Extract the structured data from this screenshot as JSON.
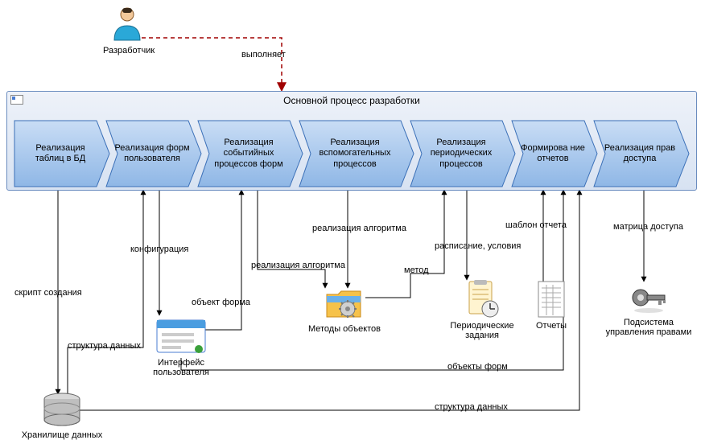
{
  "actor": {
    "label": "Разработчик"
  },
  "edge_actor": "выполняет",
  "container": {
    "title": "Основной процесс разработки"
  },
  "chevrons": [
    {
      "label": "Реализация таблиц в БД"
    },
    {
      "label": "Реализация форм пользователя"
    },
    {
      "label": "Реализация событийных процессов форм"
    },
    {
      "label": "Реализация вспомогательных процессов"
    },
    {
      "label": "Реализация периодических процессов"
    },
    {
      "label": "Формирова ние отчетов"
    },
    {
      "label": "Реализация прав доступа"
    }
  ],
  "objects": {
    "storage": "Хранилище данных",
    "ui": "Интерфейс пользователя",
    "methods": "Методы объектов",
    "periodic": "Периодические задания",
    "reports": "Отчеты",
    "rights": "Подсистема управления правами"
  },
  "edges": {
    "script": "скрипт создания",
    "struct1": "структура данных",
    "config": "конфигурация",
    "formobj": "объект форма",
    "alg1": "реализация алгоритма",
    "alg2": "реализация алгоритма",
    "method": "метод",
    "schedule": "расписание, условия",
    "tmpl": "шаблон отчета",
    "formobjs": "объекты форм",
    "struct2": "структура данных",
    "matrix": "матрица доступа"
  },
  "style": {
    "chevron_fill_top": "#c9ddf5",
    "chevron_fill_bot": "#8fb7e6",
    "chevron_stroke": "#3a6fb7",
    "container_border": "#6a8cbf",
    "dashed_color": "#a00000",
    "line_color": "#000000"
  }
}
